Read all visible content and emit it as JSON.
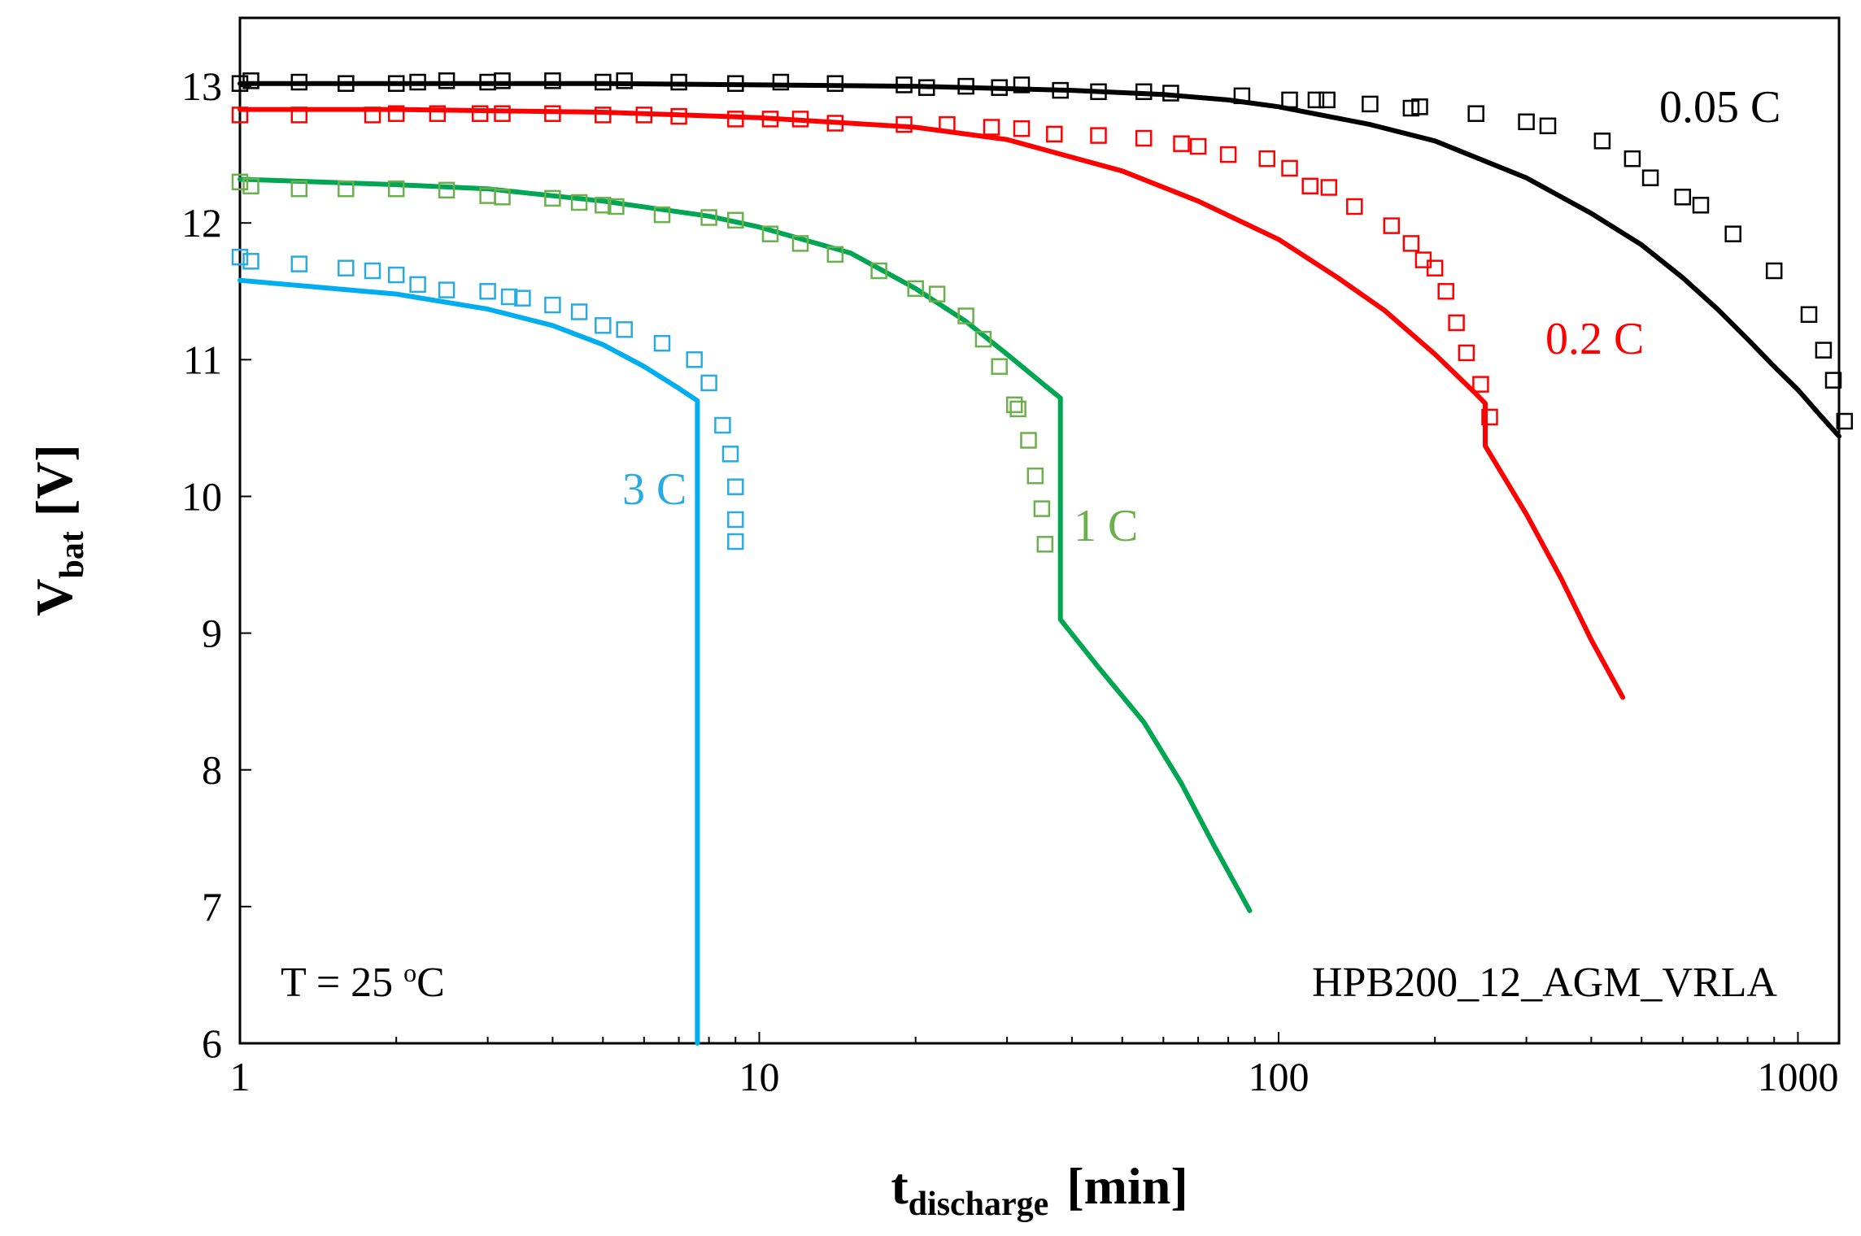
{
  "chart_data": {
    "type": "line",
    "xlabel": {
      "main": "t",
      "sub": "discharge",
      "unit": "[min]"
    },
    "ylabel": {
      "main": "V",
      "sub": "bat",
      "unit": "[V]"
    },
    "xscale": "log",
    "xlim": [
      1,
      1200
    ],
    "ylim": [
      6,
      13.5
    ],
    "xticks": [
      1,
      10,
      100,
      1000
    ],
    "xtick_labels": [
      "1",
      "10",
      "100",
      "1000"
    ],
    "yticks": [
      6,
      7,
      8,
      9,
      10,
      11,
      12,
      13
    ],
    "ytick_labels": [
      "6",
      "7",
      "8",
      "9",
      "10",
      "11",
      "12",
      "13"
    ],
    "grid": false,
    "annotations": {
      "temperature": {
        "prefix": "T = 25 ",
        "sup": "o",
        "suffix": "C"
      },
      "battery": "HPB200_12_AGM_VRLA"
    },
    "series": [
      {
        "name": "0.05 C",
        "color": "#000000",
        "line": [
          [
            1,
            13.02
          ],
          [
            2,
            13.02
          ],
          [
            5,
            13.02
          ],
          [
            10,
            13.01
          ],
          [
            20,
            13.0
          ],
          [
            40,
            12.97
          ],
          [
            60,
            12.94
          ],
          [
            80,
            12.9
          ],
          [
            100,
            12.85
          ],
          [
            150,
            12.72
          ],
          [
            200,
            12.6
          ],
          [
            300,
            12.33
          ],
          [
            400,
            12.07
          ],
          [
            500,
            11.84
          ],
          [
            600,
            11.6
          ],
          [
            700,
            11.37
          ],
          [
            800,
            11.15
          ],
          [
            900,
            10.95
          ],
          [
            1000,
            10.78
          ],
          [
            1100,
            10.6
          ],
          [
            1200,
            10.44
          ]
        ],
        "markers": [
          [
            1,
            13.02
          ],
          [
            1.05,
            13.04
          ],
          [
            1.3,
            13.03
          ],
          [
            1.6,
            13.02
          ],
          [
            2,
            13.02
          ],
          [
            2.2,
            13.03
          ],
          [
            2.5,
            13.04
          ],
          [
            3,
            13.03
          ],
          [
            3.2,
            13.04
          ],
          [
            4,
            13.04
          ],
          [
            5,
            13.03
          ],
          [
            5.5,
            13.04
          ],
          [
            7,
            13.03
          ],
          [
            9,
            13.02
          ],
          [
            11,
            13.03
          ],
          [
            14,
            13.02
          ],
          [
            19,
            13.01
          ],
          [
            21,
            12.99
          ],
          [
            25,
            13.0
          ],
          [
            29,
            12.99
          ],
          [
            32,
            13.01
          ],
          [
            38,
            12.97
          ],
          [
            45,
            12.96
          ],
          [
            55,
            12.96
          ],
          [
            62,
            12.95
          ],
          [
            85,
            12.93
          ],
          [
            105,
            12.9
          ],
          [
            118,
            12.9
          ],
          [
            124,
            12.9
          ],
          [
            150,
            12.87
          ],
          [
            180,
            12.84
          ],
          [
            187,
            12.85
          ],
          [
            240,
            12.8
          ],
          [
            300,
            12.74
          ],
          [
            330,
            12.71
          ],
          [
            420,
            12.6
          ],
          [
            480,
            12.47
          ],
          [
            520,
            12.33
          ],
          [
            600,
            12.19
          ],
          [
            650,
            12.13
          ],
          [
            750,
            11.92
          ],
          [
            900,
            11.65
          ],
          [
            1050,
            11.33
          ],
          [
            1120,
            11.07
          ],
          [
            1170,
            10.85
          ],
          [
            1230,
            10.55
          ]
        ]
      },
      {
        "name": "0.2 C",
        "color": "#ff0000",
        "line": [
          [
            1,
            12.83
          ],
          [
            2,
            12.83
          ],
          [
            5,
            12.81
          ],
          [
            10,
            12.77
          ],
          [
            20,
            12.7
          ],
          [
            30,
            12.61
          ],
          [
            50,
            12.38
          ],
          [
            70,
            12.16
          ],
          [
            100,
            11.88
          ],
          [
            130,
            11.6
          ],
          [
            160,
            11.36
          ],
          [
            200,
            11.04
          ],
          [
            240,
            10.75
          ],
          [
            250,
            10.68
          ],
          [
            250,
            10.37
          ],
          [
            300,
            9.87
          ],
          [
            350,
            9.4
          ],
          [
            400,
            8.95
          ],
          [
            460,
            8.53
          ]
        ],
        "markers": [
          [
            1,
            12.79
          ],
          [
            1.3,
            12.79
          ],
          [
            1.8,
            12.79
          ],
          [
            2,
            12.8
          ],
          [
            2.4,
            12.8
          ],
          [
            2.9,
            12.8
          ],
          [
            3.2,
            12.8
          ],
          [
            4,
            12.8
          ],
          [
            5,
            12.79
          ],
          [
            6,
            12.79
          ],
          [
            7,
            12.78
          ],
          [
            9,
            12.76
          ],
          [
            10.5,
            12.76
          ],
          [
            12,
            12.76
          ],
          [
            14,
            12.73
          ],
          [
            19,
            12.72
          ],
          [
            23,
            12.72
          ],
          [
            28,
            12.7
          ],
          [
            32,
            12.69
          ],
          [
            37,
            12.65
          ],
          [
            45,
            12.64
          ],
          [
            55,
            12.62
          ],
          [
            65,
            12.58
          ],
          [
            70,
            12.56
          ],
          [
            80,
            12.5
          ],
          [
            95,
            12.47
          ],
          [
            105,
            12.4
          ],
          [
            115,
            12.27
          ],
          [
            125,
            12.26
          ],
          [
            140,
            12.12
          ],
          [
            165,
            11.98
          ],
          [
            180,
            11.85
          ],
          [
            190,
            11.73
          ],
          [
            200,
            11.67
          ],
          [
            210,
            11.5
          ],
          [
            220,
            11.27
          ],
          [
            230,
            11.05
          ],
          [
            245,
            10.82
          ],
          [
            255,
            10.58
          ]
        ]
      },
      {
        "name": "1 C",
        "color": "#00a651",
        "marker_color": "#6ab04c",
        "line": [
          [
            1,
            12.32
          ],
          [
            2,
            12.28
          ],
          [
            3,
            12.25
          ],
          [
            5,
            12.16
          ],
          [
            8,
            12.05
          ],
          [
            10,
            11.97
          ],
          [
            15,
            11.78
          ],
          [
            20,
            11.52
          ],
          [
            25,
            11.28
          ],
          [
            30,
            11.04
          ],
          [
            35,
            10.83
          ],
          [
            38,
            10.72
          ],
          [
            38,
            9.1
          ],
          [
            45,
            8.75
          ],
          [
            55,
            8.35
          ],
          [
            65,
            7.9
          ],
          [
            75,
            7.45
          ],
          [
            88,
            6.97
          ]
        ],
        "markers": [
          [
            1,
            12.3
          ],
          [
            1.05,
            12.27
          ],
          [
            1.3,
            12.25
          ],
          [
            1.6,
            12.25
          ],
          [
            2,
            12.25
          ],
          [
            2.5,
            12.24
          ],
          [
            3,
            12.2
          ],
          [
            3.2,
            12.19
          ],
          [
            4,
            12.18
          ],
          [
            4.5,
            12.15
          ],
          [
            5,
            12.13
          ],
          [
            5.3,
            12.12
          ],
          [
            6.5,
            12.06
          ],
          [
            8,
            12.04
          ],
          [
            9,
            12.02
          ],
          [
            10.5,
            11.92
          ],
          [
            12,
            11.85
          ],
          [
            14,
            11.77
          ],
          [
            17,
            11.65
          ],
          [
            20,
            11.52
          ],
          [
            22,
            11.48
          ],
          [
            25,
            11.32
          ],
          [
            27,
            11.15
          ],
          [
            29,
            10.95
          ],
          [
            31,
            10.67
          ],
          [
            31.5,
            10.64
          ],
          [
            33,
            10.41
          ],
          [
            34,
            10.15
          ],
          [
            35,
            9.91
          ],
          [
            35.5,
            9.65
          ]
        ]
      },
      {
        "name": "3 C",
        "color": "#00aeef",
        "marker_color": "#29abe2",
        "line": [
          [
            1,
            11.58
          ],
          [
            2,
            11.48
          ],
          [
            3,
            11.37
          ],
          [
            4,
            11.25
          ],
          [
            5,
            11.11
          ],
          [
            6,
            10.95
          ],
          [
            7,
            10.79
          ],
          [
            7.6,
            10.7
          ],
          [
            7.6,
            8.0
          ],
          [
            7.6,
            6.0
          ]
        ],
        "markers": [
          [
            1,
            11.75
          ],
          [
            1.05,
            11.72
          ],
          [
            1.3,
            11.7
          ],
          [
            1.6,
            11.67
          ],
          [
            1.8,
            11.65
          ],
          [
            2,
            11.62
          ],
          [
            2.2,
            11.55
          ],
          [
            2.5,
            11.51
          ],
          [
            3,
            11.5
          ],
          [
            3.3,
            11.46
          ],
          [
            3.5,
            11.45
          ],
          [
            4,
            11.4
          ],
          [
            4.5,
            11.35
          ],
          [
            5,
            11.25
          ],
          [
            5.5,
            11.22
          ],
          [
            6.5,
            11.12
          ],
          [
            7.5,
            11.0
          ],
          [
            8,
            10.83
          ],
          [
            8.5,
            10.52
          ],
          [
            8.8,
            10.31
          ],
          [
            9,
            10.07
          ],
          [
            9,
            9.83
          ],
          [
            9,
            9.67
          ]
        ]
      }
    ]
  }
}
